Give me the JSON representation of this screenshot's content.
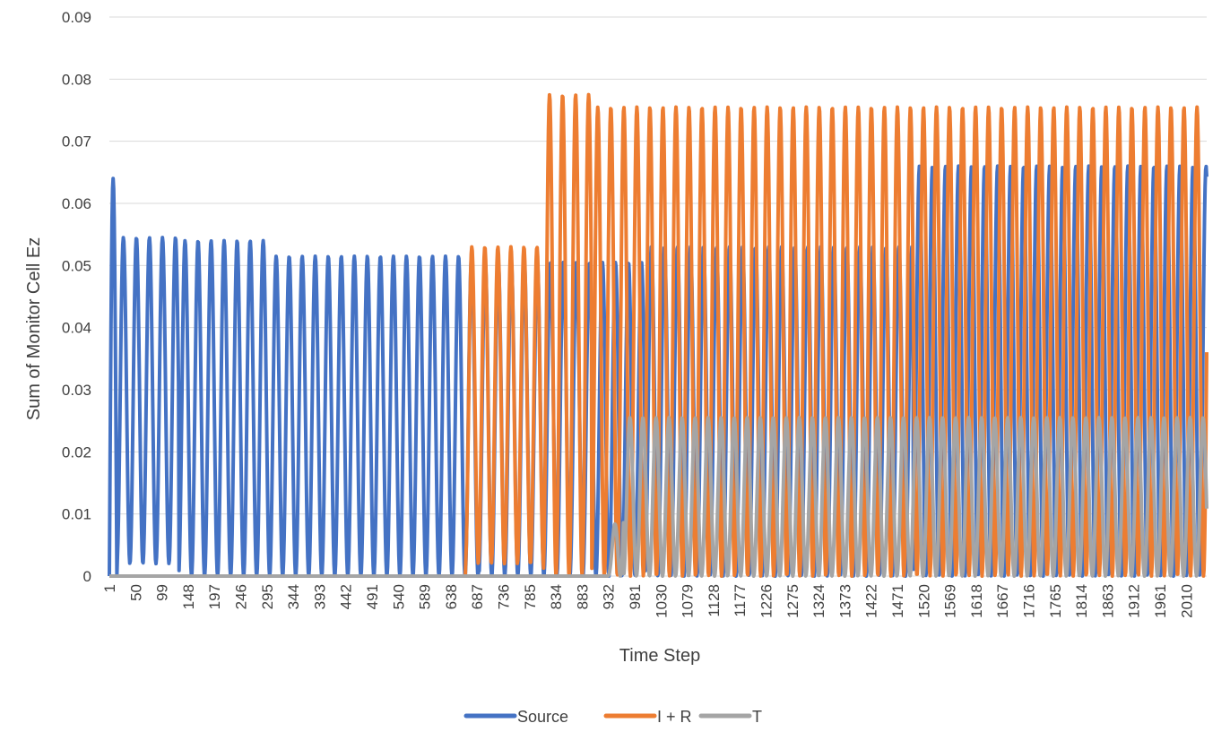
{
  "chart_data": {
    "type": "line",
    "xlabel": "Time Step",
    "ylabel": "Sum of Monitor Cell Ez",
    "ylim": [
      0,
      0.09
    ],
    "xlim": [
      1,
      2048
    ],
    "y_ticks": [
      "0",
      "0.01",
      "0.02",
      "0.03",
      "0.04",
      "0.05",
      "0.06",
      "0.07",
      "0.08",
      "0.09"
    ],
    "x_ticks": [
      "1",
      "50",
      "99",
      "148",
      "197",
      "246",
      "295",
      "344",
      "393",
      "442",
      "491",
      "540",
      "589",
      "638",
      "687",
      "736",
      "785",
      "834",
      "883",
      "932",
      "981",
      "1030",
      "1079",
      "1128",
      "1177",
      "1226",
      "1275",
      "1324",
      "1373",
      "1422",
      "1471",
      "1520",
      "1569",
      "1618",
      "1667",
      "1716",
      "1765",
      "1814",
      "1863",
      "1912",
      "1961",
      "2010"
    ],
    "grid": "horizontal",
    "legend_position": "bottom",
    "series": [
      {
        "name": "Source",
        "color": "#4472C4",
        "description_free": true,
        "period": 24.3,
        "segments": [
          {
            "x_start": 1,
            "x_end": 15,
            "mode": "pulse",
            "peak": 0.064
          },
          {
            "x_start": 15,
            "x_end": 130,
            "mode": "osc",
            "max": 0.0545,
            "min": 0.002
          },
          {
            "x_start": 130,
            "x_end": 300,
            "mode": "osc",
            "max": 0.054,
            "min": 0.0
          },
          {
            "x_start": 300,
            "x_end": 690,
            "mode": "osc",
            "max": 0.0515,
            "min": 0.0
          },
          {
            "x_start": 690,
            "x_end": 1000,
            "mode": "osc",
            "max": 0.0505,
            "min": 0.0
          },
          {
            "x_start": 1000,
            "x_end": 1500,
            "mode": "osc",
            "max": 0.053,
            "min": 0.0
          },
          {
            "x_start": 1500,
            "x_end": 2048,
            "mode": "osc",
            "max": 0.066,
            "min": 0.0,
            "end_value": 0.029
          }
        ]
      },
      {
        "name": "I + R",
        "color": "#ED7D31",
        "period": 24.3,
        "segments": [
          {
            "x_start": 1,
            "x_end": 665,
            "mode": "flat",
            "value": 0.0
          },
          {
            "x_start": 665,
            "x_end": 810,
            "mode": "osc",
            "max": 0.053,
            "min": 0.002
          },
          {
            "x_start": 810,
            "x_end": 900,
            "mode": "osc",
            "max": 0.0775,
            "min": 0.0
          },
          {
            "x_start": 900,
            "x_end": 2048,
            "mode": "osc",
            "max": 0.0755,
            "min": 0.0,
            "end_value": 0.05
          }
        ]
      },
      {
        "name": "T",
        "color": "#A5A5A5",
        "period": 24.3,
        "segments": [
          {
            "x_start": 1,
            "x_end": 930,
            "mode": "flat",
            "value": 0.0
          },
          {
            "x_start": 930,
            "x_end": 960,
            "mode": "ramp",
            "max": 0.019,
            "min": 0.0
          },
          {
            "x_start": 960,
            "x_end": 2048,
            "mode": "osc",
            "max": 0.0255,
            "min": 0.0,
            "end_value": 0.006
          }
        ]
      }
    ]
  }
}
